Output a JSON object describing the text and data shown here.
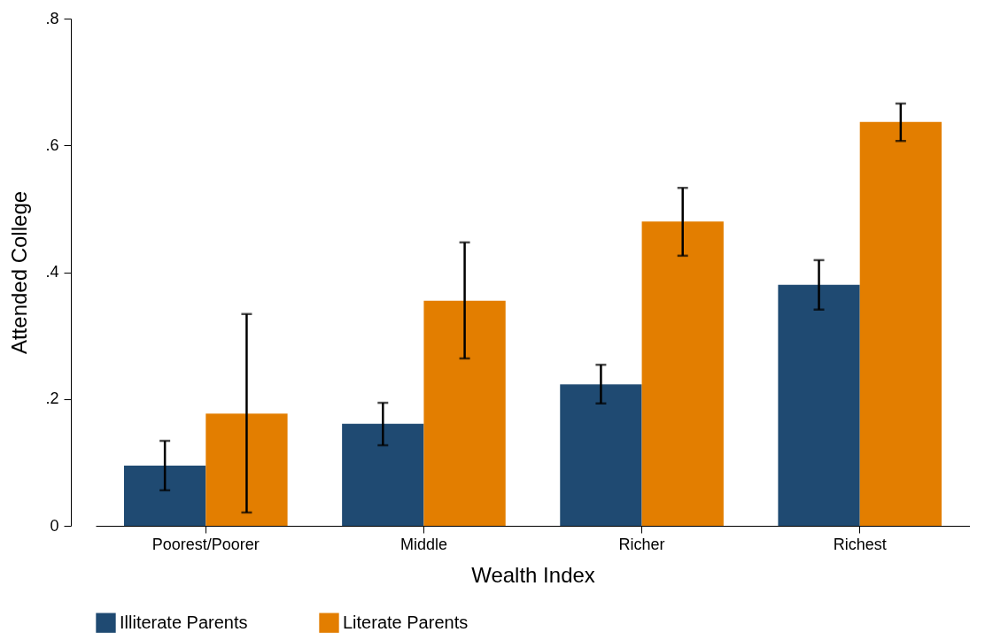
{
  "chart_data": {
    "type": "bar",
    "xlabel": "Wealth Index",
    "ylabel": "Attended College",
    "categories": [
      "Poorest/Poorer",
      "Middle",
      "Richer",
      "Richest"
    ],
    "series": [
      {
        "name": "Illiterate Parents",
        "color": "#1f4a72",
        "values": [
          0.095,
          0.161,
          0.223,
          0.38
        ],
        "errors": [
          [
            0.056,
            0.134
          ],
          [
            0.127,
            0.194
          ],
          [
            0.193,
            0.254
          ],
          [
            0.341,
            0.419
          ]
        ]
      },
      {
        "name": "Literate Parents",
        "color": "#e37e00",
        "values": [
          0.177,
          0.355,
          0.48,
          0.637
        ],
        "errors": [
          [
            0.021,
            0.334
          ],
          [
            0.264,
            0.447
          ],
          [
            0.426,
            0.533
          ],
          [
            0.607,
            0.666
          ]
        ]
      }
    ],
    "ylim": [
      0,
      0.8
    ],
    "yticks": [
      0,
      {
        "value": 0.2,
        "label": ".2"
      },
      {
        "value": 0.4,
        "label": ".4"
      },
      {
        "value": 0.6,
        "label": ".6"
      },
      {
        "value": 0.8,
        "label": ".8"
      }
    ],
    "grid": false,
    "legend": "bottom"
  }
}
